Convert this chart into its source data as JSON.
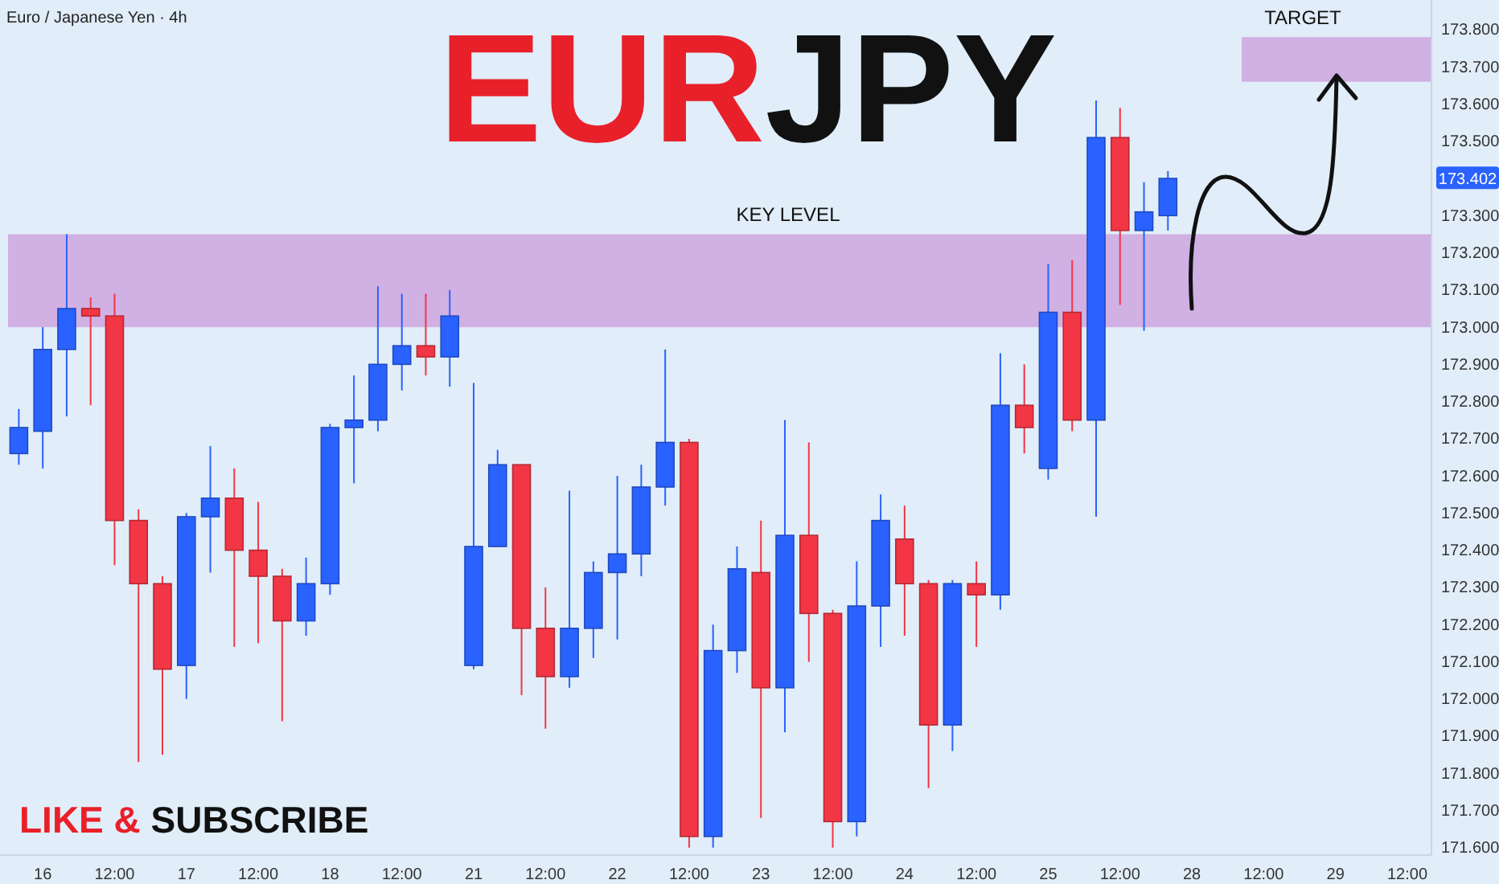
{
  "chart_data": {
    "type": "candlestick",
    "title": "EURJPY",
    "subtitle": "Euro / Japanese Yen · 4h",
    "categories": [
      null,
      "16",
      null,
      null,
      "12:00",
      null,
      null,
      "17",
      null,
      null,
      "12:00",
      null,
      null,
      "18",
      null,
      null,
      "12:00",
      null,
      null,
      "21",
      null,
      null,
      "12:00",
      null,
      null,
      "22",
      null,
      null,
      "12:00",
      null,
      null,
      "23",
      null,
      null,
      "12:00",
      null,
      null,
      "24",
      null,
      null,
      "12:00",
      null,
      null,
      "25",
      null,
      null,
      "12:00",
      null,
      null,
      "28",
      null,
      null,
      "12:00",
      null,
      null,
      "29",
      null,
      null,
      "12:00"
    ],
    "ohlc": [
      [
        172.66,
        172.78,
        172.63,
        172.73
      ],
      [
        172.72,
        173.0,
        172.62,
        172.94
      ],
      [
        172.94,
        173.25,
        172.76,
        173.05
      ],
      [
        173.05,
        173.08,
        172.79,
        173.03
      ],
      [
        173.03,
        173.09,
        172.36,
        172.48
      ],
      [
        172.48,
        172.51,
        171.83,
        172.31
      ],
      [
        172.31,
        172.33,
        171.85,
        172.08
      ],
      [
        172.09,
        172.5,
        172.0,
        172.49
      ],
      [
        172.49,
        172.68,
        172.34,
        172.54
      ],
      [
        172.54,
        172.62,
        172.14,
        172.4
      ],
      [
        172.4,
        172.53,
        172.15,
        172.33
      ],
      [
        172.33,
        172.35,
        171.94,
        172.21
      ],
      [
        172.21,
        172.38,
        172.17,
        172.31
      ],
      [
        172.31,
        172.74,
        172.28,
        172.73
      ],
      [
        172.73,
        172.87,
        172.58,
        172.75
      ],
      [
        172.75,
        173.11,
        172.72,
        172.9
      ],
      [
        172.9,
        173.09,
        172.83,
        172.95
      ],
      [
        172.95,
        173.09,
        172.87,
        172.92
      ],
      [
        172.92,
        173.1,
        172.84,
        173.03
      ],
      [
        172.09,
        172.85,
        172.08,
        172.41
      ],
      [
        172.41,
        172.67,
        172.41,
        172.63
      ],
      [
        172.63,
        172.63,
        172.01,
        172.19
      ],
      [
        172.19,
        172.3,
        171.92,
        172.06
      ],
      [
        172.06,
        172.56,
        172.03,
        172.19
      ],
      [
        172.19,
        172.37,
        172.11,
        172.34
      ],
      [
        172.34,
        172.6,
        172.16,
        172.39
      ],
      [
        172.39,
        172.63,
        172.33,
        172.57
      ],
      [
        172.57,
        172.94,
        172.52,
        172.69
      ],
      [
        172.69,
        172.7,
        171.6,
        171.63
      ],
      [
        171.63,
        172.2,
        171.6,
        172.13
      ],
      [
        172.13,
        172.41,
        172.07,
        172.35
      ],
      [
        172.34,
        172.48,
        171.68,
        172.03
      ],
      [
        172.03,
        172.75,
        171.91,
        172.44
      ],
      [
        172.44,
        172.69,
        172.1,
        172.23
      ],
      [
        172.23,
        172.24,
        171.6,
        171.67
      ],
      [
        171.67,
        172.37,
        171.63,
        172.25
      ],
      [
        172.25,
        172.55,
        172.14,
        172.48
      ],
      [
        172.43,
        172.52,
        172.17,
        172.31
      ],
      [
        172.31,
        172.32,
        171.76,
        171.93
      ],
      [
        171.93,
        172.32,
        171.86,
        172.31
      ],
      [
        172.31,
        172.37,
        172.14,
        172.28
      ],
      [
        172.28,
        172.93,
        172.24,
        172.79
      ],
      [
        172.79,
        172.9,
        172.66,
        172.73
      ],
      [
        172.62,
        173.17,
        172.59,
        173.04
      ],
      [
        173.04,
        173.18,
        172.72,
        172.75
      ],
      [
        172.75,
        173.61,
        172.49,
        173.51
      ],
      [
        173.51,
        173.59,
        173.06,
        173.26
      ],
      [
        173.26,
        173.39,
        172.99,
        173.31
      ],
      [
        173.3,
        173.42,
        173.26,
        173.4
      ],
      null,
      null,
      null,
      null,
      null,
      null,
      null,
      null,
      null,
      null
    ],
    "colors": [
      "#2962ff",
      "#2962ff",
      "#2962ff",
      "#f23645",
      "#f23645",
      "#f23645",
      "#f23645",
      "#2962ff",
      "#2962ff",
      "#f23645",
      "#f23645",
      "#f23645",
      "#2962ff",
      "#2962ff",
      "#2962ff",
      "#2962ff",
      "#2962ff",
      "#f23645",
      "#2962ff",
      "#2962ff",
      "#2962ff",
      "#f23645",
      "#f23645",
      "#2962ff",
      "#2962ff",
      "#2962ff",
      "#2962ff",
      "#2962ff",
      "#f23645",
      "#2962ff",
      "#2962ff",
      "#f23645",
      "#2962ff",
      "#f23645",
      "#f23645",
      "#2962ff",
      "#2962ff",
      "#f23645",
      "#f23645",
      "#2962ff",
      "#f23645",
      "#2962ff",
      "#f23645",
      "#2962ff",
      "#f23645",
      "#2962ff",
      "#f23645",
      "#2962ff",
      "#2962ff",
      null,
      null,
      null,
      null,
      null,
      null,
      null,
      null,
      null,
      null
    ],
    "ylim": [
      171.58,
      173.88
    ],
    "yticks": [
      {
        "value": 171.6,
        "label": "171.600"
      },
      {
        "value": 171.7,
        "label": "171.700"
      },
      {
        "value": 171.8,
        "label": "171.800"
      },
      {
        "value": 171.9,
        "label": "171.900"
      },
      {
        "value": 172.0,
        "label": "172.000"
      },
      {
        "value": 172.1,
        "label": "172.100"
      },
      {
        "value": 172.2,
        "label": "172.200"
      },
      {
        "value": 172.3,
        "label": "172.300"
      },
      {
        "value": 172.4,
        "label": "172.400"
      },
      {
        "value": 172.5,
        "label": "172.500"
      },
      {
        "value": 172.6,
        "label": "172.600"
      },
      {
        "value": 172.7,
        "label": "172.700"
      },
      {
        "value": 172.8,
        "label": "172.800"
      },
      {
        "value": 172.9,
        "label": "172.900"
      },
      {
        "value": 173.0,
        "label": "173.000"
      },
      {
        "value": 173.1,
        "label": "173.100"
      },
      {
        "value": 173.2,
        "label": "173.200"
      },
      {
        "value": 173.3,
        "label": "173.300"
      },
      {
        "value": 173.5,
        "label": "173.500"
      },
      {
        "value": 173.6,
        "label": "173.600"
      },
      {
        "value": 173.7,
        "label": "173.700"
      },
      {
        "value": 173.8,
        "label": "173.800"
      }
    ],
    "bands": [
      {
        "axis": "y",
        "from": 173.0,
        "to": 173.25,
        "label": "KEY LEVEL",
        "color": "#cfa9e0"
      },
      {
        "axis": "y",
        "from": 173.66,
        "to": 173.78,
        "label": "TARGET",
        "color": "#cfa9e0"
      }
    ],
    "annotations": [
      {
        "text": "173.402",
        "y": 173.402
      },
      "LIKE & SUBSCRIBE"
    ]
  }
}
